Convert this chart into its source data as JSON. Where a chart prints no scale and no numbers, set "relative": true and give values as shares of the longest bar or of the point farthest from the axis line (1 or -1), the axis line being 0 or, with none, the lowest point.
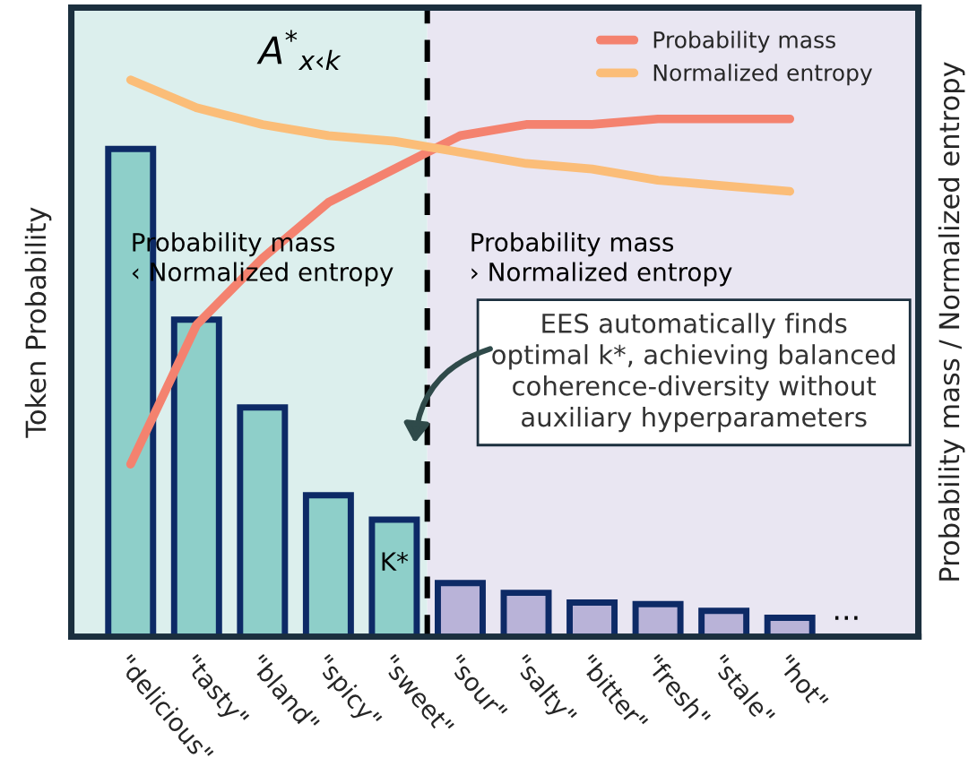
{
  "chart_data": {
    "type": "bar",
    "relative": true,
    "ylabel": "Token Probability",
    "y2label": "Probability mass / Normalized entropy",
    "categories": [
      "\"delicious\"",
      "\"tasty\"",
      "\"bland\"",
      "\"spicy\"",
      "\"sweet\"",
      "\"sour\"",
      "\"salty\"",
      "\"bitter\"",
      "\"fresh\"",
      "\"stale\"",
      "\"hot\""
    ],
    "series": [
      {
        "colors": [
          "#8ecfc9",
          "#8ecfc9",
          "#8ecfc9",
          "#8ecfc9",
          "#8ecfc9",
          "#b9b3d8",
          "#b9b3d8",
          "#b9b3d8",
          "#b9b3d8",
          "#b9b3d8",
          "#b9b3d8"
        ],
        "values": [
          1,
          0.65,
          0.47,
          0.29,
          0.24,
          0.11,
          0.09,
          0.07,
          0.067,
          0.053,
          0.039
        ]
      },
      {
        "type": "line",
        "axis": "y2",
        "name": "Probability mass",
        "color": "#f4826f",
        "values": [
          0.31,
          0.56,
          0.68,
          0.78,
          0.84,
          0.9,
          0.92,
          0.92,
          0.93,
          0.93,
          0.93
        ]
      },
      {
        "type": "line",
        "axis": "y2",
        "name": "Normalized entropy",
        "color": "#fbbd78",
        "values": [
          1,
          0.95,
          0.92,
          0.9,
          0.89,
          0.87,
          0.85,
          0.84,
          0.82,
          0.81,
          0.8
        ]
      }
    ],
    "legend": "top right",
    "marker": "none",
    "line_style": "solid",
    "annotations": [
      "A$^{*}$$_{x‹k}$",
      "Probability mass\n‹ Normalized entropy",
      "Probability mass\n› Normalized entropy",
      "EES automatically finds\noptimal k*, achieving balanced\ncoherence-diversity without\nauxiliary hyperparameters",
      "K*",
      "..."
    ]
  }
}
